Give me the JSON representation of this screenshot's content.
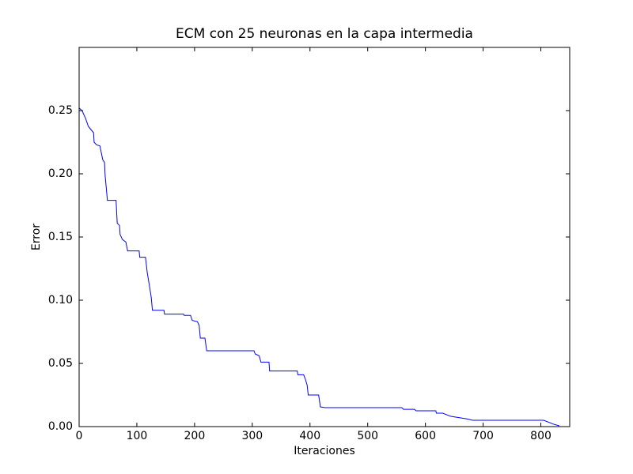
{
  "chart_data": {
    "type": "line",
    "title": "ECM con 25 neuronas en la capa intermedia",
    "xlabel": "Iteraciones",
    "ylabel": "Error",
    "color": "#0000ff",
    "x": [
      0,
      5,
      11,
      16,
      25,
      26,
      30,
      36,
      41,
      44,
      45,
      49,
      64,
      66,
      70,
      71,
      75,
      81,
      84,
      104,
      105,
      115,
      118,
      123,
      125,
      127,
      147,
      148,
      181,
      182,
      193,
      196,
      205,
      208,
      210,
      218,
      221,
      303,
      305,
      312,
      315,
      329,
      330,
      378,
      379,
      389,
      392,
      395,
      397,
      415,
      418,
      426,
      559,
      562,
      581,
      584,
      618,
      619,
      630,
      644,
      671,
      682,
      805,
      822,
      832
    ],
    "values": [
      0.252,
      0.25,
      0.244,
      0.2375,
      0.2325,
      0.225,
      0.223,
      0.222,
      0.211,
      0.209,
      0.199,
      0.179,
      0.179,
      0.161,
      0.159,
      0.152,
      0.148,
      0.146,
      0.139,
      0.139,
      0.134,
      0.134,
      0.122,
      0.108,
      0.102,
      0.092,
      0.092,
      0.089,
      0.089,
      0.088,
      0.088,
      0.084,
      0.083,
      0.08,
      0.07,
      0.07,
      0.06,
      0.06,
      0.0575,
      0.056,
      0.051,
      0.051,
      0.044,
      0.044,
      0.041,
      0.041,
      0.0375,
      0.033,
      0.025,
      0.025,
      0.0156,
      0.015,
      0.015,
      0.0137,
      0.0137,
      0.0125,
      0.0125,
      0.0106,
      0.0106,
      0.0081,
      0.0062,
      0.005,
      0.005,
      0.0019,
      0.0006
    ],
    "xlim": [
      0,
      850
    ],
    "xticks": [
      0,
      100,
      200,
      300,
      400,
      500,
      600,
      700,
      800
    ],
    "ylim": [
      0,
      0.3
    ],
    "yticks": [
      {
        "value": 0,
        "label": "0.00"
      },
      {
        "value": 0.05,
        "label": "0.05"
      },
      {
        "value": 0.1,
        "label": "0.10"
      },
      {
        "value": 0.15,
        "label": "0.15"
      },
      {
        "value": 0.2,
        "label": "0.20"
      },
      {
        "value": 0.25,
        "label": "0.25"
      }
    ],
    "grid": false
  }
}
